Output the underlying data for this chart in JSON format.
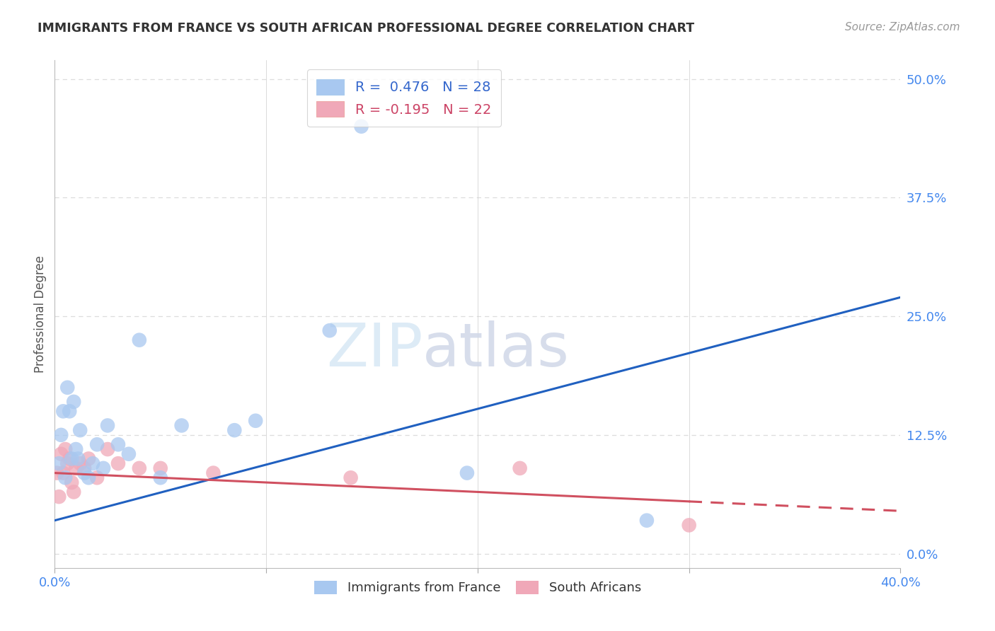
{
  "title": "IMMIGRANTS FROM FRANCE VS SOUTH AFRICAN PROFESSIONAL DEGREE CORRELATION CHART",
  "source": "Source: ZipAtlas.com",
  "ylabel": "Professional Degree",
  "ytick_values": [
    0.0,
    12.5,
    25.0,
    37.5,
    50.0
  ],
  "xmin": 0.0,
  "xmax": 40.0,
  "ymin": -1.5,
  "ymax": 52.0,
  "blue_color": "#a8c8f0",
  "pink_color": "#f0a8b8",
  "blue_line_color": "#2060c0",
  "pink_line_color": "#d05060",
  "france_scatter_x": [
    0.2,
    0.3,
    0.4,
    0.5,
    0.6,
    0.7,
    0.8,
    0.9,
    1.0,
    1.1,
    1.2,
    1.4,
    1.6,
    1.8,
    2.0,
    2.3,
    2.5,
    3.0,
    3.5,
    4.0,
    5.0,
    6.0,
    8.5,
    9.5,
    13.0,
    14.5,
    19.5,
    28.0
  ],
  "france_scatter_y": [
    9.5,
    12.5,
    15.0,
    8.0,
    17.5,
    15.0,
    10.0,
    16.0,
    11.0,
    10.0,
    13.0,
    8.5,
    8.0,
    9.5,
    11.5,
    9.0,
    13.5,
    11.5,
    10.5,
    22.5,
    8.0,
    13.5,
    13.0,
    14.0,
    23.5,
    45.0,
    8.5,
    3.5
  ],
  "sa_scatter_x": [
    0.1,
    0.2,
    0.3,
    0.4,
    0.5,
    0.6,
    0.7,
    0.8,
    0.9,
    1.0,
    1.2,
    1.4,
    1.6,
    2.0,
    2.5,
    3.0,
    4.0,
    5.0,
    7.5,
    14.0,
    22.0,
    30.0
  ],
  "sa_scatter_y": [
    8.5,
    6.0,
    10.5,
    8.5,
    11.0,
    9.5,
    10.0,
    7.5,
    6.5,
    9.0,
    9.5,
    9.0,
    10.0,
    8.0,
    11.0,
    9.5,
    9.0,
    9.0,
    8.5,
    8.0,
    9.0,
    3.0
  ],
  "blue_line_x0": 0.0,
  "blue_line_x1": 40.0,
  "blue_line_y0": 3.5,
  "blue_line_y1": 27.0,
  "pink_line_x0": 0.0,
  "pink_line_x1": 30.0,
  "pink_line_y0": 8.5,
  "pink_line_y1": 5.5,
  "pink_dash_x0": 30.0,
  "pink_dash_x1": 40.0,
  "pink_dash_y0": 5.5,
  "pink_dash_y1": 4.5,
  "watermark_zip": "ZIP",
  "watermark_atlas": "atlas",
  "background_color": "#ffffff",
  "grid_color": "#dddddd"
}
